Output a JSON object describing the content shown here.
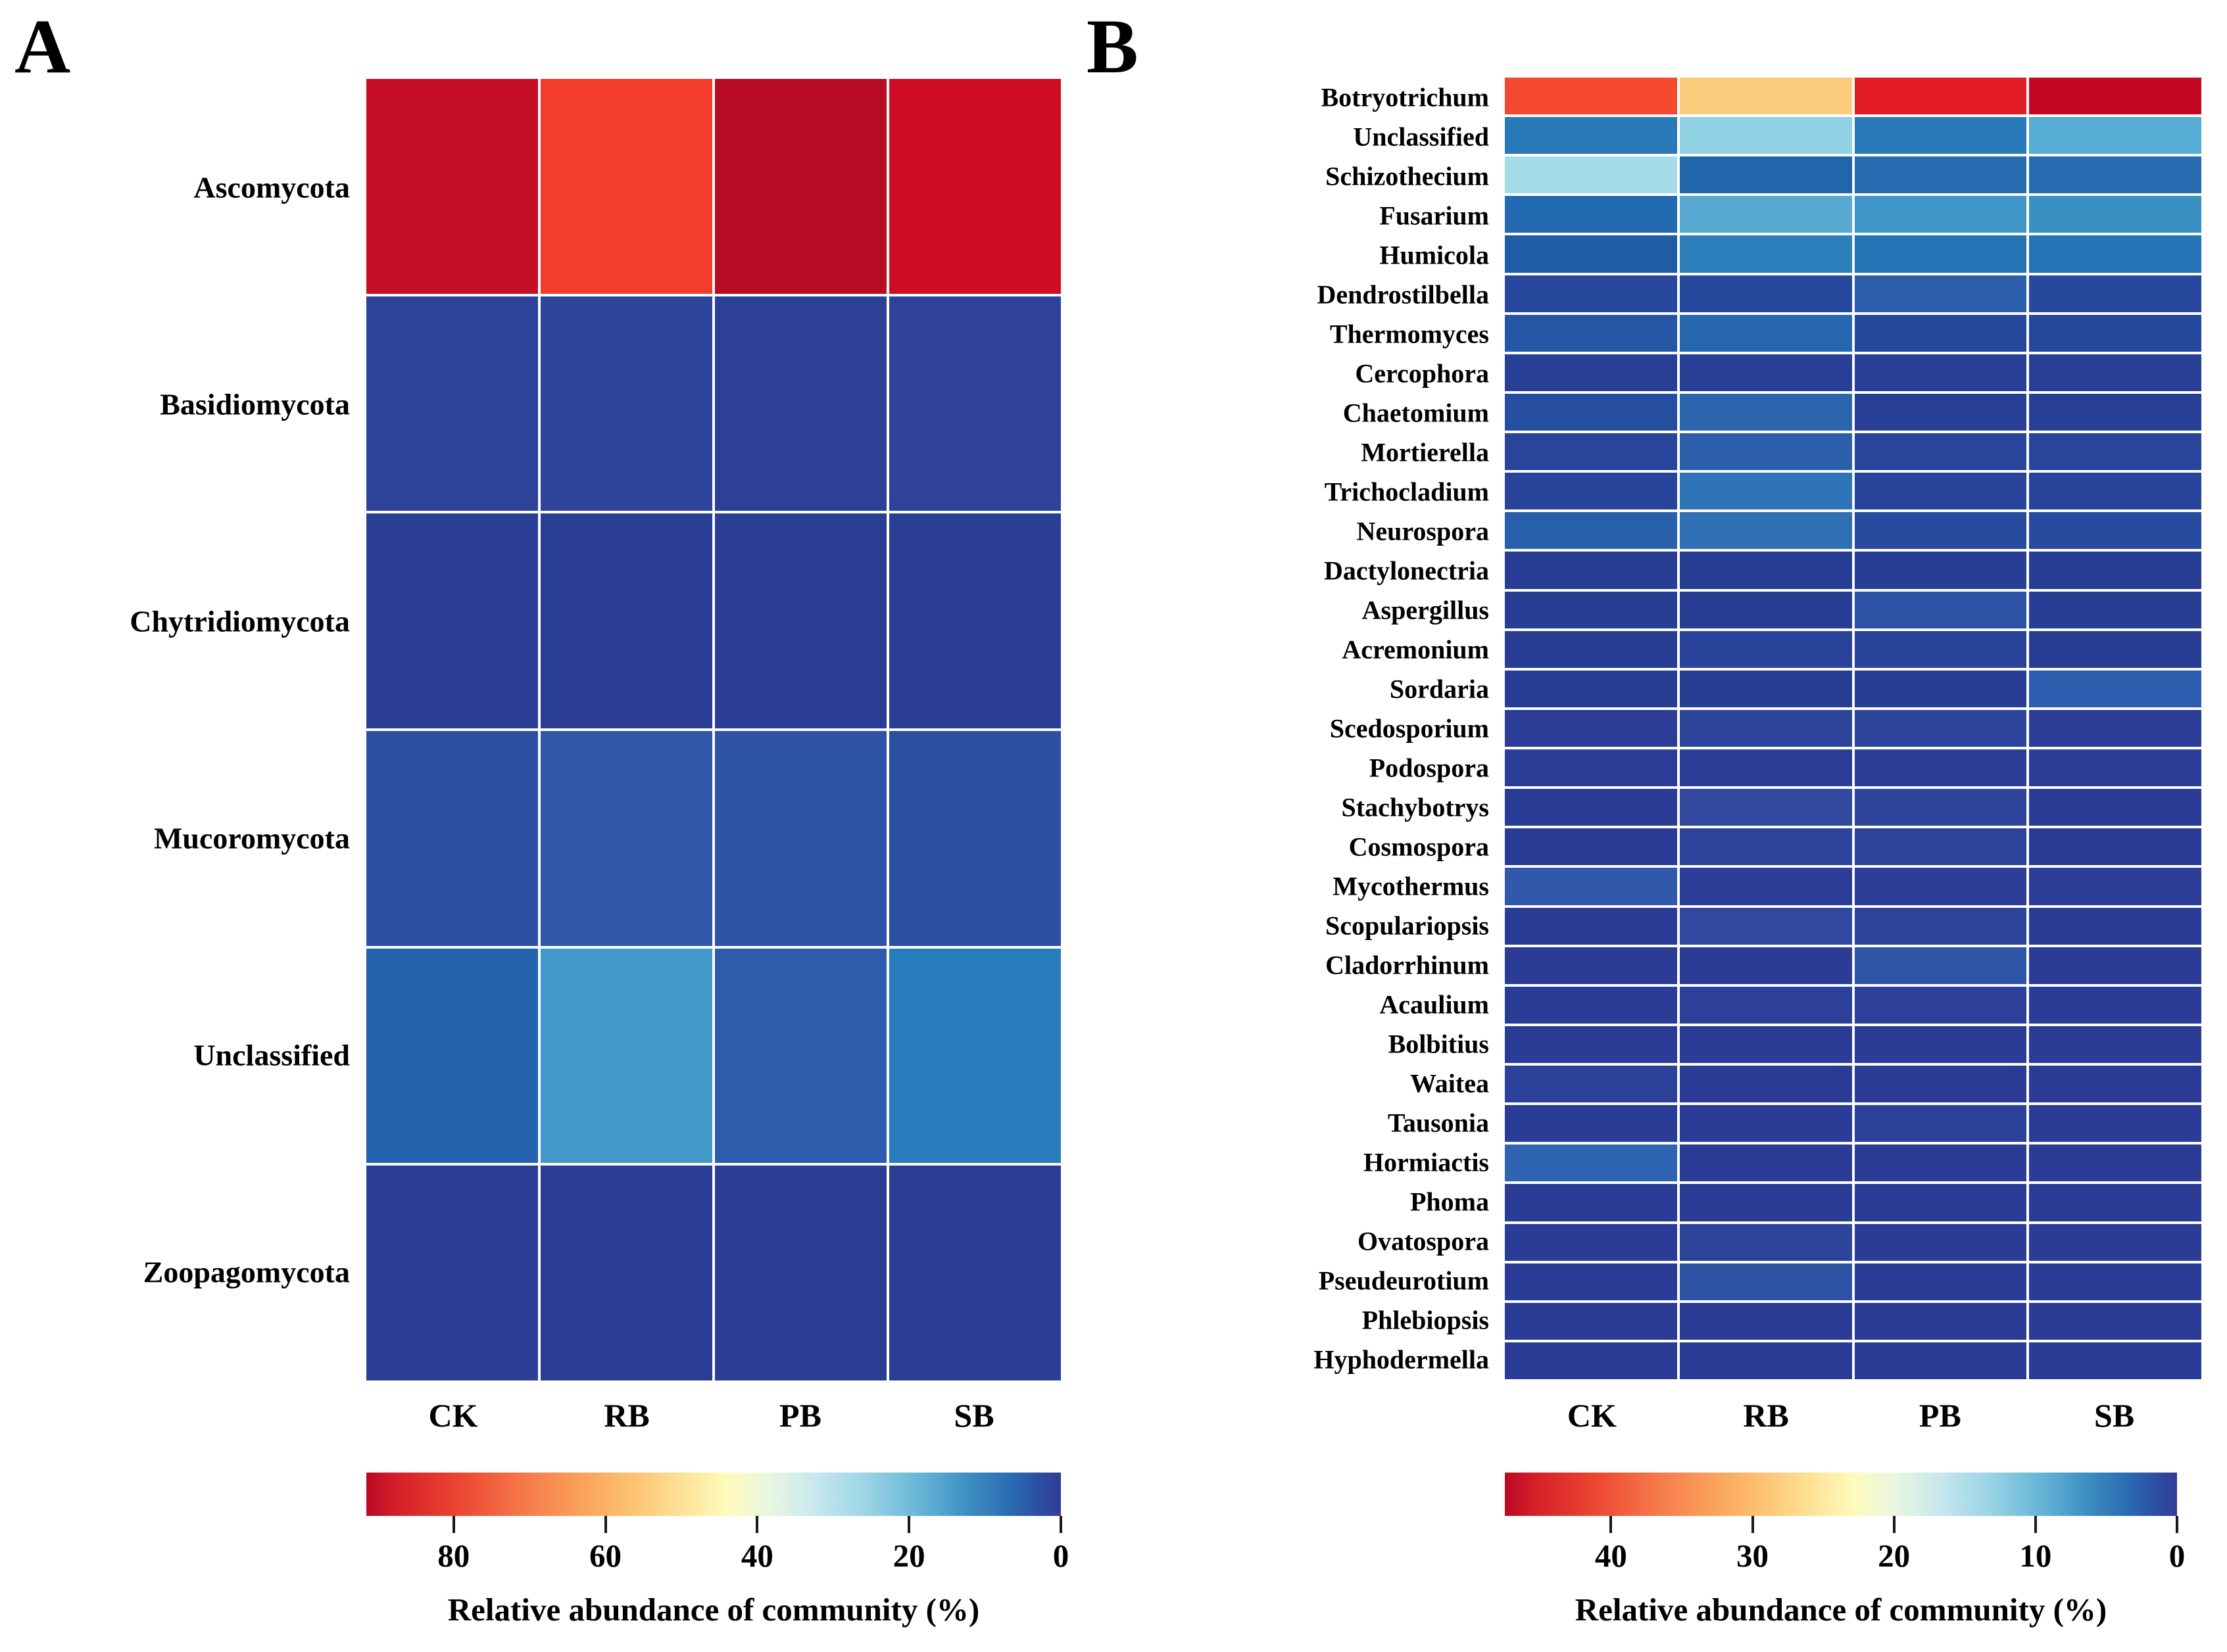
{
  "figure": {
    "panel_letters": [
      "A",
      "B"
    ]
  },
  "chart_data": [
    {
      "type": "heatmap",
      "panel_label": "A",
      "columns": [
        "CK",
        "RB",
        "PB",
        "SB"
      ],
      "rows": [
        "Ascomycota",
        "Basidiomycota",
        "Chytridiomycota",
        "Mucoromycota",
        "Unclassified",
        "Zoopagomycota"
      ],
      "values_percent": [
        [
          84,
          74,
          87,
          83
        ],
        [
          3,
          3,
          2.5,
          3
        ],
        [
          2,
          2,
          2,
          2
        ],
        [
          6.5,
          8.5,
          7,
          6.5
        ],
        [
          12,
          21,
          10,
          15
        ],
        [
          1.5,
          1.5,
          1.5,
          1.5
        ]
      ],
      "cell_colors": [
        [
          "#c60d26",
          "#f23d2c",
          "#b90b23",
          "#cf0e26"
        ],
        [
          "#2d4299",
          "#2e459b",
          "#2c4097",
          "#2d4298"
        ],
        [
          "#2b3e96",
          "#2b3e96",
          "#2b3e96",
          "#2b3e96"
        ],
        [
          "#2d50a3",
          "#3058a9",
          "#2e52a5",
          "#2d4fa2"
        ],
        [
          "#2363ae",
          "#4398ca",
          "#2d5cad",
          "#297cbc"
        ],
        [
          "#2c3d96",
          "#2c3d96",
          "#2c3d96",
          "#2c3d96"
        ]
      ],
      "colorbar": {
        "label": "Relative abundance of community (%)",
        "ticks": [
          "80",
          "60",
          "40",
          "20",
          "0"
        ],
        "tick_values": [
          80,
          60,
          40,
          20,
          0
        ],
        "scale_max": 91.5,
        "scale_min": 0,
        "orientation": "horizontal",
        "high_color": "#bb0926",
        "low_color": "#313d96"
      },
      "legend_position": "bottom",
      "grid": "white cell borders"
    },
    {
      "type": "heatmap",
      "panel_label": "B",
      "columns": [
        "CK",
        "RB",
        "PB",
        "SB"
      ],
      "rows": [
        "Botryotrichum",
        "Unclassified",
        "Schizothecium",
        "Fusarium",
        "Humicola",
        "Dendrostilbella",
        "Thermomyces",
        "Cercophora",
        "Chaetomium",
        "Mortierella",
        "Trichocladium",
        "Neurospora",
        "Dactylonectria",
        "Aspergillus",
        "Acremonium",
        "Sordaria",
        "Scedosporium",
        "Podospora",
        "Stachybotrys",
        "Cosmospora",
        "Mycothermus",
        "Scopulariopsis",
        "Cladorrhinum",
        "Acaulium",
        "Bolbitius",
        "Waitea",
        "Tausonia",
        "Hormiactis",
        "Phoma",
        "Ovatospora",
        "Pseudeurotium",
        "Phlebiopsis",
        "Hyphodermella"
      ],
      "values_percent": [
        [
          40,
          30,
          44,
          47
        ],
        [
          7,
          13.5,
          7,
          10.5
        ],
        [
          15,
          5.5,
          6,
          6
        ],
        [
          6,
          10.5,
          9,
          8.5
        ],
        [
          4.5,
          7.5,
          6.5,
          6.5
        ],
        [
          2,
          2,
          4.5,
          2
        ],
        [
          4,
          5.5,
          2,
          2
        ],
        [
          1.5,
          1.5,
          1.5,
          1.5
        ],
        [
          3,
          5,
          1.5,
          1.5
        ],
        [
          1.5,
          4.5,
          1.5,
          1.5
        ],
        [
          1.5,
          6.5,
          1.5,
          1.5
        ],
        [
          4.5,
          6,
          2.5,
          2.5
        ],
        [
          1,
          1,
          1,
          1
        ],
        [
          1,
          1,
          3.5,
          1
        ],
        [
          1,
          1.5,
          1.5,
          1
        ],
        [
          1,
          1,
          1,
          4
        ],
        [
          1,
          1.5,
          1.5,
          1
        ],
        [
          1,
          1,
          1,
          1
        ],
        [
          1,
          2,
          1.5,
          1
        ],
        [
          1,
          1.5,
          1.5,
          1
        ],
        [
          4,
          1,
          1,
          1
        ],
        [
          1,
          2,
          1.5,
          1
        ],
        [
          1,
          1,
          3.5,
          1
        ],
        [
          1,
          1.5,
          1.5,
          1
        ],
        [
          1,
          1,
          1,
          1
        ],
        [
          1.5,
          1,
          1,
          1
        ],
        [
          1,
          1,
          1.5,
          1
        ],
        [
          5,
          1,
          1,
          1
        ],
        [
          1,
          1,
          1,
          1
        ],
        [
          1,
          1.5,
          1,
          1
        ],
        [
          1,
          3,
          1,
          1
        ],
        [
          1,
          1,
          1,
          1
        ],
        [
          1,
          1,
          1,
          1
        ]
      ],
      "cell_colors": [
        [
          "#f4492e",
          "#fbcc7b",
          "#e21b24",
          "#c60723"
        ],
        [
          "#2a79b8",
          "#8fd2e4",
          "#2a79b8",
          "#55acd4"
        ],
        [
          "#a6dce9",
          "#2166ad",
          "#276cb1",
          "#276cb1"
        ],
        [
          "#226ab1",
          "#57a9d2",
          "#4096c8",
          "#3890c3"
        ],
        [
          "#215ca7",
          "#2c80bb",
          "#2473b4",
          "#2473b4"
        ],
        [
          "#27489d",
          "#27489d",
          "#2b5fac",
          "#27489d"
        ],
        [
          "#2357a5",
          "#2767af",
          "#25489d",
          "#25489d"
        ],
        [
          "#283f96",
          "#283f96",
          "#283f96",
          "#283f96"
        ],
        [
          "#264ea1",
          "#2c64ae",
          "#283f96",
          "#283f96"
        ],
        [
          "#29449b",
          "#2c5fab",
          "#29449b",
          "#29449b"
        ],
        [
          "#28439a",
          "#2f74b6",
          "#28439a",
          "#28439a"
        ],
        [
          "#2860ac",
          "#2f6fb4",
          "#284ba0",
          "#284ba0"
        ],
        [
          "#283e95",
          "#283e95",
          "#283e95",
          "#283e95"
        ],
        [
          "#283e95",
          "#283e95",
          "#2b52a5",
          "#283e95"
        ],
        [
          "#283e95",
          "#29439a",
          "#29439a",
          "#283e95"
        ],
        [
          "#283e95",
          "#283e95",
          "#283e95",
          "#2b5cae"
        ],
        [
          "#2b3d96",
          "#2e459c",
          "#2e459c",
          "#2b3d96"
        ],
        [
          "#2b3d96",
          "#2b3d96",
          "#2b3d96",
          "#2b3d96"
        ],
        [
          "#2a3c95",
          "#31489e",
          "#2f459c",
          "#2a3c95"
        ],
        [
          "#2a3c95",
          "#2e439b",
          "#2d429a",
          "#2a3c95"
        ],
        [
          "#3059ac",
          "#2b3d96",
          "#2b3d96",
          "#2b3d96"
        ],
        [
          "#2a3c95",
          "#30489f",
          "#2e449b",
          "#2a3c95"
        ],
        [
          "#2a3c95",
          "#2a3c95",
          "#2d55a8",
          "#2a3c95"
        ],
        [
          "#2a3c95",
          "#2c409a",
          "#2c409a",
          "#2a3c95"
        ],
        [
          "#2a3c95",
          "#2a3c95",
          "#2a3c95",
          "#2a3c95"
        ],
        [
          "#2c429a",
          "#2a3c95",
          "#2a3c95",
          "#2a3c95"
        ],
        [
          "#2a3c95",
          "#2a3c95",
          "#2c429a",
          "#2a3c95"
        ],
        [
          "#2f64b2",
          "#2a3c95",
          "#2a3c95",
          "#2a3c95"
        ],
        [
          "#2a3c95",
          "#2a3c95",
          "#2a3c95",
          "#2a3c95"
        ],
        [
          "#2a3c95",
          "#2d449b",
          "#2a3c95",
          "#2a3c95"
        ],
        [
          "#2a3c95",
          "#2d52a4",
          "#2a3c95",
          "#2a3c95"
        ],
        [
          "#2a3c95",
          "#2a3c95",
          "#2a3c95",
          "#2a3c95"
        ],
        [
          "#2a3c95",
          "#2a3c95",
          "#2a3c95",
          "#2a3c95"
        ]
      ],
      "colorbar": {
        "label": "Relative abundance of community (%)",
        "ticks": [
          "40",
          "30",
          "20",
          "10",
          "0"
        ],
        "tick_values": [
          40,
          30,
          20,
          10,
          0
        ],
        "scale_max": 47.5,
        "scale_min": 0,
        "orientation": "horizontal",
        "high_color": "#bb0926",
        "low_color": "#313d96"
      },
      "legend_position": "bottom",
      "grid": "white cell borders"
    }
  ],
  "colormap_gradient_high_to_low": {
    "colors": [
      "#bb0926",
      "#d7212a",
      "#ea4430",
      "#f67549",
      "#fa9d58",
      "#fdc575",
      "#fee499",
      "#fffbbd",
      "#e9f6e1",
      "#c5e7ee",
      "#9bd4e5",
      "#64b4d6",
      "#3b8cc2",
      "#2a6ab1",
      "#2c4da1",
      "#313d96"
    ],
    "positions_percent": [
      0,
      5,
      13,
      22,
      30,
      39,
      46,
      52,
      58,
      65,
      72,
      80,
      87,
      93,
      97,
      100
    ]
  }
}
